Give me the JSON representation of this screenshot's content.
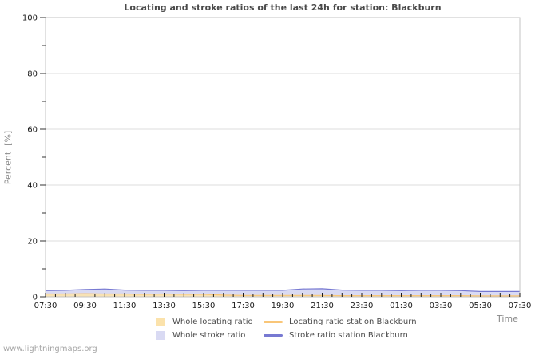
{
  "watermark": "www.lightningmaps.org",
  "chart_data": {
    "type": "area",
    "title": "Locating and stroke ratios of the last 24h for station: Blackburn",
    "ylabel": "Percent  [%]",
    "xlabel": "Time",
    "ylim": [
      0,
      100
    ],
    "y_major_ticks": [
      0,
      20,
      40,
      60,
      80,
      100
    ],
    "y_minor_step": 10,
    "grid": "horizontal",
    "legend_position": "bottom",
    "x_hours_span": 24,
    "x_label_every_hours": 2,
    "x_major_tick_hours": 1,
    "x_minor_tick_hours": 0.5,
    "x_tick_labels": [
      "07:30",
      "09:30",
      "11:30",
      "13:30",
      "15:30",
      "17:30",
      "19:30",
      "21:30",
      "23:30",
      "01:30",
      "03:30",
      "05:30",
      "07:30"
    ],
    "series": [
      {
        "name": "Whole locating ratio",
        "type": "area",
        "color": "#fbe2ab",
        "values": [
          1.1,
          1.1,
          1.2,
          1.1,
          1.1,
          1.0,
          1.1,
          1.0,
          1.0,
          0.7,
          0.6,
          0.6,
          0.6,
          0.6,
          0.5,
          0.5,
          0.5,
          0.5,
          0.5,
          0.5,
          0.5,
          0.5,
          0.4,
          0.4,
          0.4
        ]
      },
      {
        "name": "Whole stroke ratio",
        "type": "area",
        "color": "#d9daf3",
        "values": [
          2.3,
          2.4,
          2.7,
          2.9,
          2.5,
          2.4,
          2.4,
          2.3,
          2.4,
          2.4,
          2.4,
          2.4,
          2.4,
          2.9,
          3.0,
          2.5,
          2.4,
          2.4,
          2.3,
          2.4,
          2.4,
          2.3,
          2.0,
          2.0,
          2.0
        ]
      },
      {
        "name": "Locating ratio station Blackburn",
        "type": "line",
        "color": "#f9c678",
        "values": [
          1.0,
          1.0,
          1.1,
          1.0,
          1.0,
          0.9,
          1.0,
          0.9,
          0.9,
          0.6,
          0.5,
          0.5,
          0.5,
          0.5,
          0.5,
          0.4,
          0.4,
          0.4,
          0.4,
          0.4,
          0.4,
          0.4,
          0.3,
          0.3,
          0.3
        ]
      },
      {
        "name": "Stroke ratio station Blackburn",
        "type": "line",
        "color": "#7779d2",
        "values": [
          2.2,
          2.3,
          2.6,
          2.8,
          2.4,
          2.3,
          2.3,
          2.2,
          2.3,
          2.3,
          2.3,
          2.3,
          2.3,
          2.8,
          2.9,
          2.4,
          2.3,
          2.3,
          2.2,
          2.3,
          2.3,
          2.2,
          1.9,
          1.9,
          1.9
        ]
      }
    ]
  }
}
